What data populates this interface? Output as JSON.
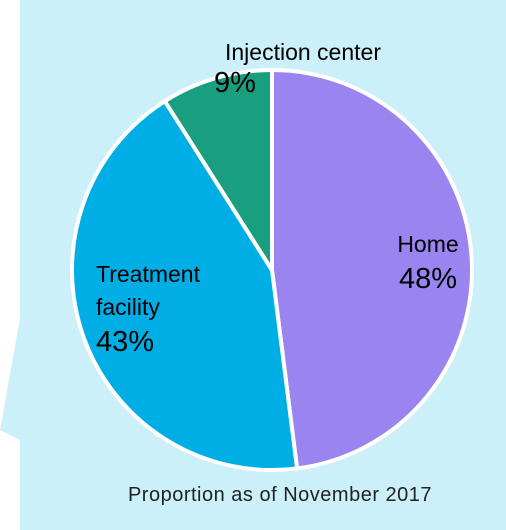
{
  "chart_data": {
    "type": "pie",
    "categories": [
      "Home",
      "Treatment facility",
      "Injection center"
    ],
    "values": [
      48,
      43,
      9
    ],
    "value_labels": [
      "48%",
      "43%",
      "9%"
    ],
    "colors": [
      "#9a85f0",
      "#00aee6",
      "#1a9e80"
    ],
    "note": "Proportion as of November 2017"
  }
}
